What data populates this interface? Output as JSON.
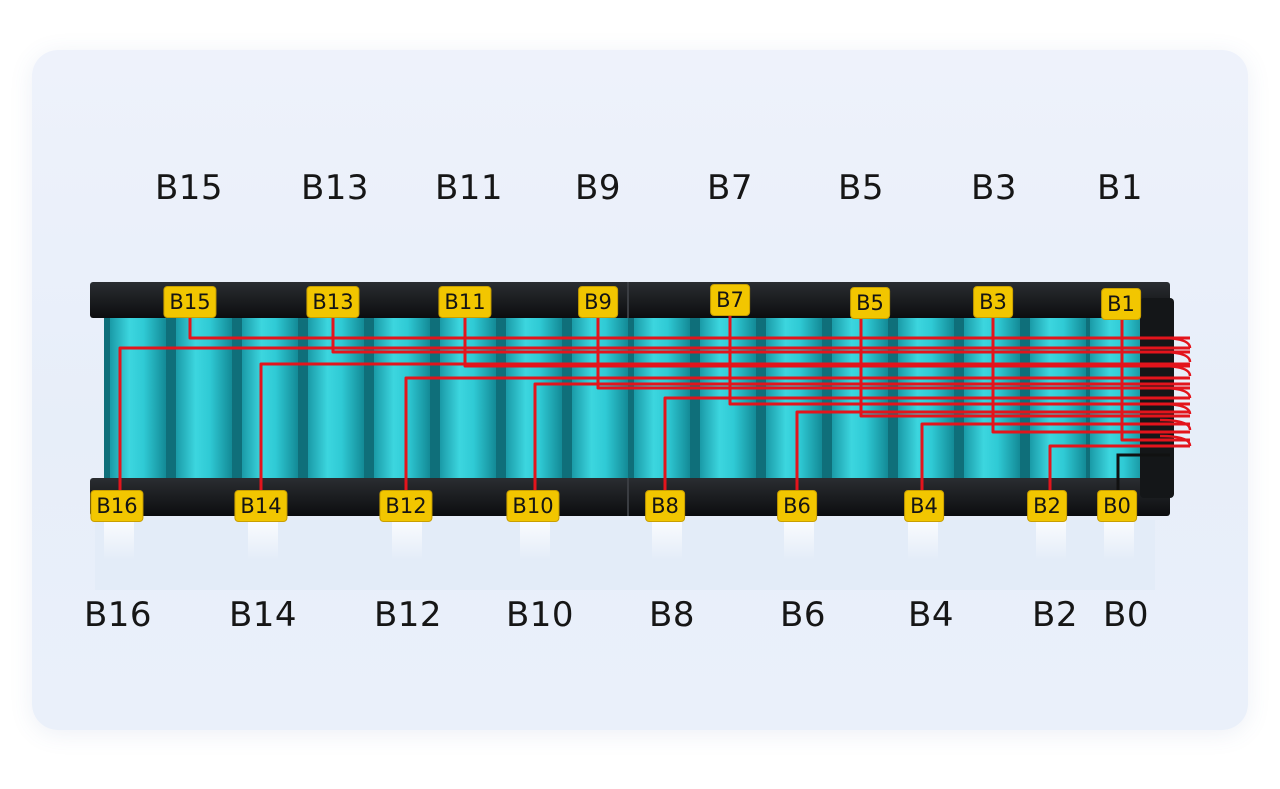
{
  "top_labels": [
    "B15",
    "B13",
    "B11",
    "B9",
    "B7",
    "B5",
    "B3",
    "B1"
  ],
  "bottom_labels": [
    "B16",
    "B14",
    "B12",
    "B10",
    "B8",
    "B6",
    "B4",
    "B2",
    "B0"
  ],
  "top_tags": [
    "B15",
    "B13",
    "B11",
    "B9",
    "B7",
    "B5",
    "B3",
    "B1"
  ],
  "bottom_tags": [
    "B16",
    "B14",
    "B12",
    "B10",
    "B8",
    "B6",
    "B4",
    "B2",
    "B0"
  ],
  "colors": {
    "cell": "#29c4cf",
    "frame": "#121416",
    "wire": "#e3141c",
    "tag": "#f2c600"
  }
}
